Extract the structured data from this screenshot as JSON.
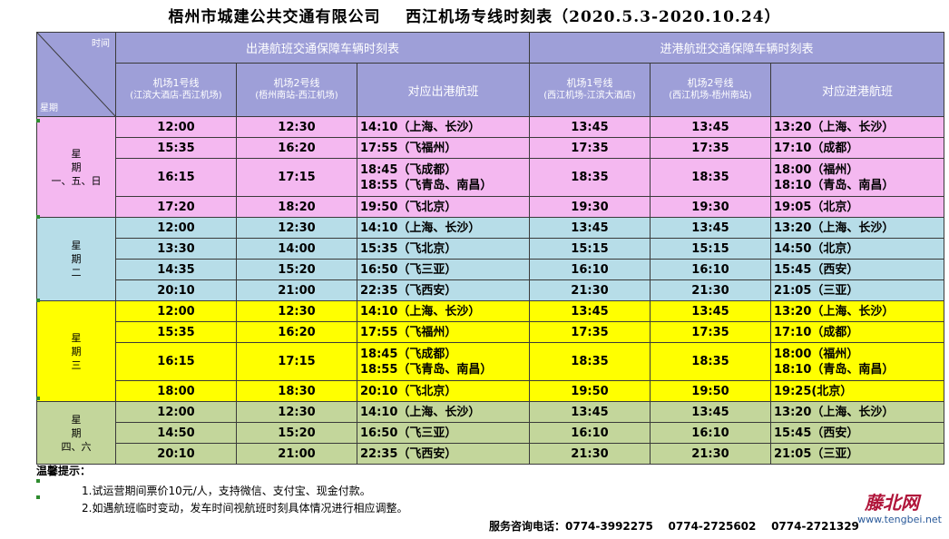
{
  "title": "梧州市城建公共交通有限公司    西江机场专线时刻表（2020.5.3-2020.10.24）",
  "header": {
    "corner_top": "时间",
    "corner_bottom": "星期",
    "out_group": "出港航班交通保障车辆时刻表",
    "in_group": "进港航班交通保障车辆时刻表",
    "cols": [
      {
        "line": "机场1号线",
        "route": "(江滨大酒店-西江机场)"
      },
      {
        "line": "机场2号线",
        "route": "(梧州南站-西江机场)"
      },
      {
        "label": "对应出港航班"
      },
      {
        "line": "机场1号线",
        "route": "(西江机场-江滨大酒店)"
      },
      {
        "line": "机场2号线",
        "route": "(西江机场-梧州南站)"
      },
      {
        "label": "对应进港航班"
      }
    ]
  },
  "groups": [
    {
      "theme": "pink",
      "day_lines": [
        "星",
        "期",
        "一、五、日"
      ],
      "rows": [
        {
          "c": [
            "12:00",
            "12:30",
            [
              "14:10（上海、长沙）"
            ],
            "13:45",
            "13:45",
            [
              "13:20（上海、长沙）"
            ]
          ]
        },
        {
          "c": [
            "15:35",
            "16:20",
            [
              "17:55（飞福州）"
            ],
            "17:35",
            "17:35",
            [
              "17:10（成都）"
            ]
          ]
        },
        {
          "c": [
            "16:15",
            "17:15",
            [
              "18:45（飞成都）",
              "18:55（飞青岛、南昌）"
            ],
            "18:35",
            "18:35",
            [
              "18:00（福州）",
              "18:10（青岛、南昌）"
            ]
          ]
        },
        {
          "c": [
            "17:20",
            "18:20",
            [
              "19:50（飞北京）"
            ],
            "19:30",
            "19:30",
            [
              "19:05（北京）"
            ]
          ]
        }
      ]
    },
    {
      "theme": "blue",
      "day_lines": [
        "星",
        "期",
        "二"
      ],
      "rows": [
        {
          "c": [
            "12:00",
            "12:30",
            [
              "14:10（上海、长沙）"
            ],
            "13:45",
            "13:45",
            [
              "13:20（上海、长沙）"
            ]
          ]
        },
        {
          "c": [
            "13:30",
            "14:00",
            [
              "15:35（飞北京）"
            ],
            "15:15",
            "15:15",
            [
              "14:50（北京）"
            ]
          ]
        },
        {
          "c": [
            "14:35",
            "15:20",
            [
              "16:50（飞三亚）"
            ],
            "16:10",
            "16:10",
            [
              "15:45（西安）"
            ]
          ]
        },
        {
          "c": [
            "20:10",
            "21:00",
            [
              "22:35（飞西安）"
            ],
            "21:30",
            "21:30",
            [
              "21:05（三亚）"
            ]
          ]
        }
      ]
    },
    {
      "theme": "yellow",
      "day_lines": [
        "星",
        "期",
        "三"
      ],
      "rows": [
        {
          "c": [
            "12:00",
            "12:30",
            [
              "14:10（上海、长沙）"
            ],
            "13:45",
            "13:45",
            [
              "13:20（上海、长沙）"
            ]
          ]
        },
        {
          "c": [
            "15:35",
            "16:20",
            [
              "17:55（飞福州）"
            ],
            "17:35",
            "17:35",
            [
              "17:10（成都）"
            ]
          ]
        },
        {
          "c": [
            "16:15",
            "17:15",
            [
              "18:45（飞成都）",
              "18:55（飞青岛、南昌）"
            ],
            "18:35",
            "18:35",
            [
              "18:00（福州）",
              "18:10（青岛、南昌）"
            ]
          ]
        },
        {
          "c": [
            "18:00",
            "18:30",
            [
              "20:10（飞北京）"
            ],
            "19:50",
            "19:50",
            [
              "19:25(北京）"
            ]
          ]
        }
      ]
    },
    {
      "theme": "green",
      "day_lines": [
        "星",
        "期",
        "四、六"
      ],
      "rows": [
        {
          "c": [
            "12:00",
            "12:30",
            [
              "14:10（上海、长沙）"
            ],
            "13:45",
            "13:45",
            [
              "13:20（上海、长沙）"
            ]
          ]
        },
        {
          "c": [
            "14:50",
            "15:20",
            [
              "16:50（飞三亚）"
            ],
            "16:10",
            "16:10",
            [
              "15:45（西安）"
            ]
          ]
        },
        {
          "c": [
            "20:10",
            "21:00",
            [
              "22:35（飞西安）"
            ],
            "21:30",
            "21:30",
            [
              "21:05（三亚）"
            ]
          ]
        }
      ]
    }
  ],
  "tips": {
    "title": "温馨提示：",
    "items": [
      "1.试运营期间票价10元/人，支持微信、支付宝、现金付款。",
      "2.如遇航班临时变动，发车时间视航班时刻具体情况进行相应调整。"
    ]
  },
  "contact": "服务咨询电话：0774-3992275    0774-2725602    0774-2721329",
  "watermark": {
    "name": "藤北网",
    "url": "www.tengbei.net"
  },
  "colors": {
    "header": "#9e9fd8",
    "pink": "#f4b8f0",
    "blue": "#b7dde8",
    "yellow": "#ffff00",
    "green": "#c3d69b"
  }
}
